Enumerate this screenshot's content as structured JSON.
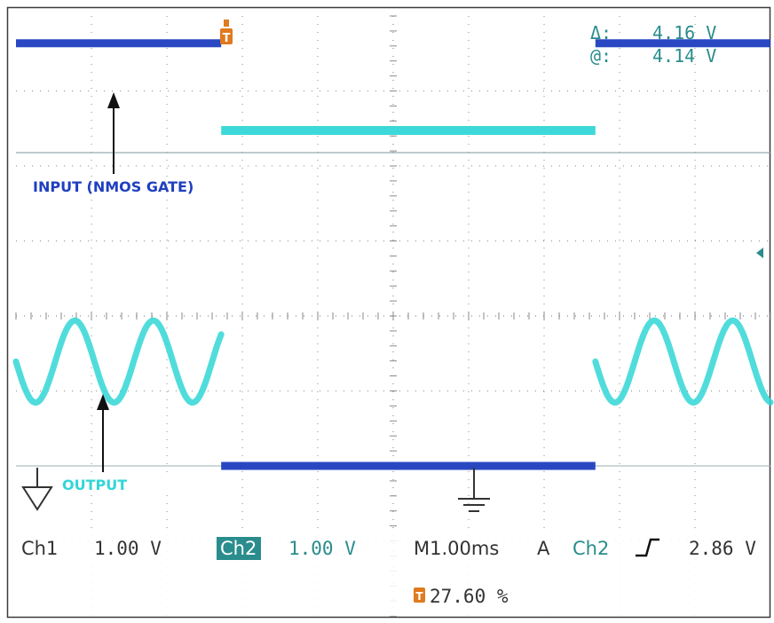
{
  "colors": {
    "ch1": "#1f3fbf",
    "ch2": "#33d6d6",
    "readout": "#2a8c8c",
    "grid": "#8a8a8a",
    "frame": "#3a3a3a",
    "text": "#333333",
    "trigger_marker": "#e07a1e"
  },
  "cursor_readout": {
    "delta_label": "Δ:",
    "delta_value": "4.16 V",
    "at_label": "@:",
    "at_value": "4.14 V"
  },
  "annotations": {
    "input_label": "INPUT (NMOS GATE)",
    "output_label": "OUTPUT"
  },
  "status_bar": {
    "ch1_label": "Ch1",
    "ch1_scale": "1.00 V",
    "ch2_label": "Ch2",
    "ch2_scale": "1.00 V",
    "timebase": "M1.00ms",
    "trigger_mode": "A",
    "trigger_source": "Ch2",
    "trigger_slope_icon": "rising-edge-icon",
    "trigger_level": "2.86 V",
    "trigger_position": "27.60 %"
  },
  "chart_data": {
    "type": "line",
    "title": "",
    "xlabel": "",
    "ylabel": "",
    "x_divisions": 10,
    "y_divisions": 8,
    "x_unit_per_div_ms": 1.0,
    "x_range_ms": [
      0,
      10
    ],
    "grid": true,
    "series": [
      {
        "name": "Ch1",
        "volts_per_div": 1.0,
        "segments": [
          {
            "x_ms": [
              0.0,
              2.72
            ],
            "level_div": 5.67
          },
          {
            "x_ms": [
              2.72,
              7.68
            ],
            "level_div": 0.0
          },
          {
            "x_ms": [
              7.68,
              10.0
            ],
            "level_div": 5.67
          }
        ]
      },
      {
        "name": "Ch2",
        "volts_per_div": 1.0,
        "segments": [
          {
            "x_ms": [
              0.0,
              2.72
            ],
            "shape": "sine",
            "center_div": 1.4,
            "amplitude_div": 0.55,
            "period_ms": 1.04
          },
          {
            "x_ms": [
              2.72,
              7.68
            ],
            "level_div": 4.5
          },
          {
            "x_ms": [
              7.68,
              10.0
            ],
            "shape": "sine",
            "center_div": 1.4,
            "amplitude_div": 0.55,
            "period_ms": 1.04
          }
        ]
      }
    ]
  }
}
